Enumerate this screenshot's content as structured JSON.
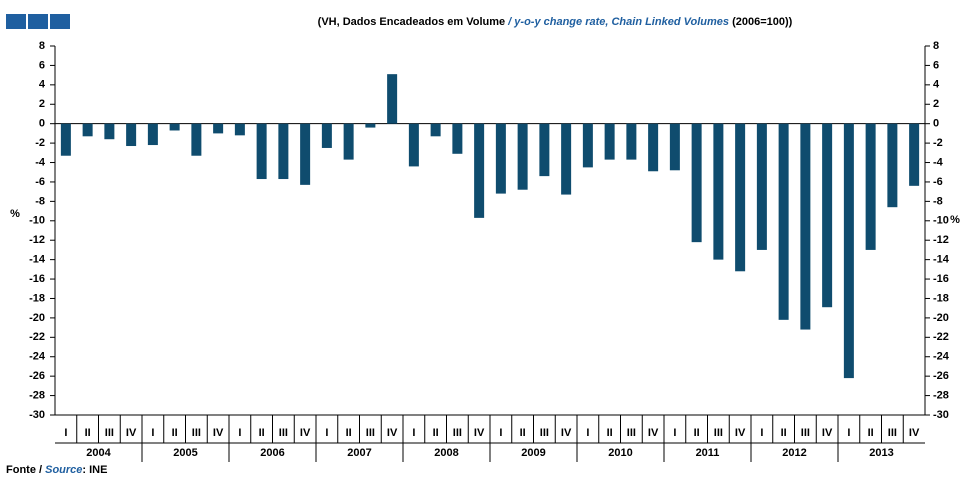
{
  "chart_data": {
    "type": "bar",
    "subtitle_parts": [
      "(VH, Dados Encadeados em Volume ",
      "/ y-o-y change rate, Chain Linked Volumes",
      " (2006=100))"
    ],
    "source_parts": [
      "Fonte / ",
      "Source",
      ": INE"
    ],
    "y_label": "%",
    "y2_label": "%",
    "categories": [
      "I",
      "II",
      "III",
      "IV",
      "I",
      "II",
      "III",
      "IV",
      "I",
      "II",
      "III",
      "IV",
      "I",
      "II",
      "III",
      "IV",
      "I",
      "II",
      "III",
      "IV",
      "I",
      "II",
      "III",
      "IV",
      "I",
      "II",
      "III",
      "IV",
      "I",
      "II",
      "III",
      "IV",
      "I",
      "II",
      "III",
      "IV",
      "I",
      "II",
      "III",
      "IV"
    ],
    "years": [
      "2004",
      "2005",
      "2006",
      "2007",
      "2008",
      "2009",
      "2010",
      "2011",
      "2012",
      "2013"
    ],
    "values": [
      -3.3,
      -1.3,
      -1.6,
      -2.3,
      -2.2,
      -0.7,
      -3.3,
      -1.0,
      -1.2,
      -5.7,
      -5.7,
      -6.3,
      -2.5,
      -3.7,
      -0.4,
      5.1,
      -4.4,
      -1.3,
      -3.1,
      -9.7,
      -7.2,
      -6.8,
      -5.4,
      -7.3,
      -4.5,
      -3.7,
      -3.7,
      -4.9,
      -4.8,
      -12.2,
      -14.0,
      -15.2,
      -13.0,
      -20.2,
      -21.2,
      -18.9,
      -26.2,
      -13.0,
      -8.6,
      -6.4
    ],
    "color": "#0f4c6e",
    "ylim": [
      -30,
      8
    ],
    "yticks": [
      8,
      6,
      4,
      2,
      0,
      -2,
      -4,
      -6,
      -8,
      -10,
      -12,
      -14,
      -16,
      -18,
      -20,
      -22,
      -24,
      -26,
      -28,
      -30
    ],
    "y2lim": [
      -30,
      8
    ],
    "y2ticks": [
      8,
      6,
      4,
      2,
      0,
      -2,
      -4,
      -6,
      -8,
      -10,
      -12,
      -14,
      -16,
      -18,
      -20,
      -22,
      -24,
      -26,
      -28,
      -30
    ]
  }
}
